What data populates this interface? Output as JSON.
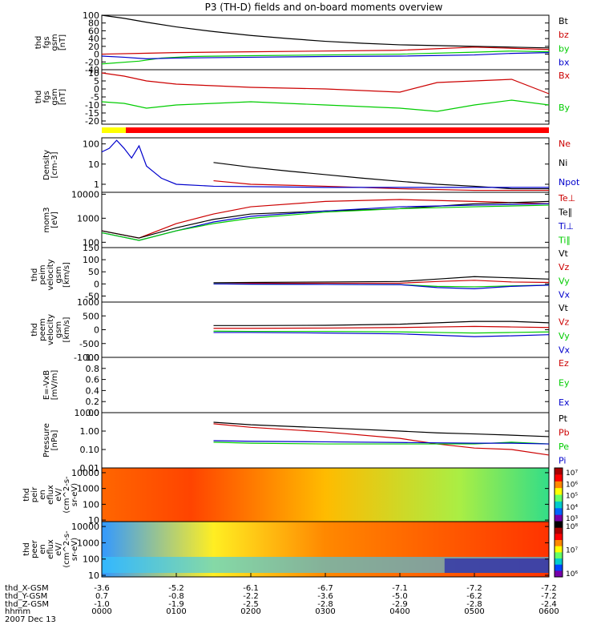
{
  "chart_data": {
    "type": "line",
    "title": "P3 (TH-D) fields and on-board moments overview",
    "date_label": "2007 Dec 13",
    "x": {
      "ticks": [
        "0000",
        "0100",
        "0200",
        "0300",
        "0400",
        "0500",
        "0600"
      ],
      "range_hours": [
        0,
        6
      ],
      "ephemeris": [
        {
          "label": "thd_X-GSM",
          "values": [
            "-3.6",
            "-5.2",
            "-6.1",
            "-6.7",
            "-7.1",
            "-7.2",
            "-7.2"
          ]
        },
        {
          "label": "thd_Y-GSM",
          "values": [
            "0.7",
            "-0.8",
            "-2.2",
            "-3.6",
            "-5.0",
            "-6.2",
            "-7.2"
          ]
        },
        {
          "label": "thd_Z-GSM",
          "values": [
            "-1.0",
            "-1.9",
            "-2.5",
            "-2.8",
            "-2.9",
            "-2.8",
            "-2.4"
          ]
        },
        {
          "label": "hhmm",
          "values": []
        }
      ]
    },
    "panels": [
      {
        "ylabel": [
          "thd",
          "fgs",
          "gsm",
          "[nT]"
        ],
        "yscale": "linear",
        "yrange": [
          -40,
          100
        ],
        "ticks": [
          "100",
          "80",
          "60",
          "40",
          "20",
          "0",
          "-20",
          "-40"
        ],
        "series": [
          {
            "name": "Bt",
            "color": "#000000",
            "x": [
              0,
              0.3,
              0.6,
              1,
              1.5,
              2,
              2.5,
              3,
              3.5,
              4,
              4.5,
              5,
              5.5,
              6
            ],
            "y": [
              100,
              92,
              82,
              70,
              58,
              48,
              40,
              33,
              28,
              24,
              22,
              20,
              18,
              16
            ]
          },
          {
            "name": "bz",
            "color": "#cc0000",
            "x": [
              0,
              0.5,
              1,
              2,
              3,
              4,
              4.5,
              5,
              5.5,
              6
            ],
            "y": [
              0,
              2,
              4,
              6,
              8,
              10,
              14,
              18,
              15,
              12
            ]
          },
          {
            "name": "by",
            "color": "#00cc00",
            "x": [
              0,
              0.5,
              0.8,
              1.2,
              2,
              3,
              4,
              5,
              5.5,
              6
            ],
            "y": [
              -25,
              -18,
              -10,
              -6,
              -4,
              -2,
              0,
              5,
              8,
              6
            ]
          },
          {
            "name": "bx",
            "color": "#0000cc",
            "x": [
              0,
              0.3,
              0.6,
              1,
              2,
              3,
              4,
              5,
              5.5,
              6
            ],
            "y": [
              -5,
              -8,
              -12,
              -10,
              -8,
              -6,
              -5,
              -2,
              2,
              4
            ]
          }
        ]
      },
      {
        "ylabel": [
          "thd",
          "fgs",
          "gsm",
          "[nT]"
        ],
        "yscale": "linear",
        "yrange": [
          -22,
          12
        ],
        "ticks": [
          "10",
          "5",
          "0",
          "-5",
          "-10",
          "-15",
          "-20"
        ],
        "series": [
          {
            "name": "Bx",
            "color": "#cc0000",
            "x": [
              0,
              0.3,
              0.6,
              1,
              1.5,
              2,
              3,
              4,
              4.5,
              5,
              5.5,
              6
            ],
            "y": [
              10,
              8,
              5,
              3,
              2,
              1,
              0,
              -2,
              4,
              5,
              6,
              -3
            ]
          },
          {
            "name": "By",
            "color": "#00cc00",
            "x": [
              0,
              0.3,
              0.6,
              1,
              1.5,
              2,
              3,
              4,
              4.5,
              5,
              5.5,
              6
            ],
            "y": [
              -8,
              -9,
              -12,
              -10,
              -9,
              -8,
              -10,
              -12,
              -14,
              -10,
              -7,
              -10
            ]
          }
        ]
      },
      {
        "ylabel": [
          "Density",
          "[cm-3]"
        ],
        "yscale": "log",
        "yrange": [
          0.4,
          200
        ],
        "ticks": [
          "100",
          "10",
          "1"
        ],
        "series": [
          {
            "name": "Ne",
            "color": "#cc0000",
            "x": [
              1.5,
              2,
              3,
              4,
              5,
              6
            ],
            "y": [
              1.5,
              1.0,
              0.8,
              0.6,
              0.5,
              0.5
            ]
          },
          {
            "name": "Ni",
            "color": "#000000",
            "x": [
              1.5,
              2,
              2.5,
              3,
              3.5,
              4,
              4.5,
              5,
              5.5,
              6
            ],
            "y": [
              12,
              7,
              4.5,
              3,
              2,
              1.4,
              1.0,
              0.8,
              0.6,
              0.6
            ]
          },
          {
            "name": "Npot",
            "color": "#0000cc",
            "x": [
              0,
              0.1,
              0.2,
              0.3,
              0.4,
              0.5,
              0.6,
              0.7,
              0.8,
              1,
              1.5,
              3,
              6
            ],
            "y": [
              40,
              60,
              150,
              60,
              20,
              80,
              8,
              4,
              2,
              1.0,
              0.8,
              0.7,
              0.7
            ]
          }
        ]
      },
      {
        "ylabel": [
          "mom3",
          "[eV]"
        ],
        "yscale": "log",
        "yrange": [
          60,
          12000
        ],
        "ticks": [
          "10000",
          "1000",
          "100"
        ],
        "series": [
          {
            "name": "Te⊥",
            "color": "#cc0000",
            "x": [
              0,
              0.5,
              1,
              1.5,
              2,
              3,
              4,
              5,
              6
            ],
            "y": [
              300,
              150,
              600,
              1500,
              3000,
              5000,
              6000,
              5000,
              4000
            ]
          },
          {
            "name": "Te∥",
            "color": "#000000",
            "x": [
              0,
              0.5,
              1,
              1.5,
              2,
              3,
              4,
              5,
              6
            ],
            "y": [
              300,
              150,
              400,
              900,
              1500,
              2000,
              2500,
              4000,
              5000
            ]
          },
          {
            "name": "Ti⊥",
            "color": "#0000cc",
            "x": [
              0,
              0.5,
              1,
              1.5,
              2,
              3,
              4,
              5,
              6
            ],
            "y": [
              250,
              120,
              300,
              700,
              1200,
              2000,
              3000,
              3500,
              4000
            ]
          },
          {
            "name": "Ti∥",
            "color": "#00cc00",
            "x": [
              0,
              0.5,
              1,
              1.5,
              2,
              3,
              4,
              5,
              6
            ],
            "y": [
              250,
              120,
              300,
              600,
              1000,
              1800,
              2500,
              3000,
              3500
            ]
          }
        ]
      },
      {
        "ylabel": [
          "thd",
          "peim",
          "velocity",
          "gsm",
          "[km/s]"
        ],
        "yscale": "linear",
        "yrange": [
          -75,
          150
        ],
        "ticks": [
          "150",
          "100",
          "50",
          "0",
          "-50"
        ],
        "series": [
          {
            "name": "Vt",
            "color": "#000000",
            "x": [
              1.5,
              2,
              3,
              4,
              4.5,
              5,
              5.5,
              6
            ],
            "y": [
              5,
              6,
              8,
              10,
              20,
              30,
              25,
              20
            ]
          },
          {
            "name": "Vz",
            "color": "#cc0000",
            "x": [
              1.5,
              2,
              3,
              4,
              4.5,
              5,
              5.5,
              6
            ],
            "y": [
              0,
              2,
              3,
              3,
              10,
              15,
              8,
              6
            ]
          },
          {
            "name": "Vy",
            "color": "#00cc00",
            "x": [
              1.5,
              2,
              3,
              4,
              4.5,
              5,
              5.5,
              6
            ],
            "y": [
              0,
              -1,
              -2,
              -3,
              -10,
              -12,
              -8,
              -5
            ]
          },
          {
            "name": "Vx",
            "color": "#0000cc",
            "x": [
              1.5,
              2,
              3,
              4,
              4.5,
              5,
              5.5,
              6
            ],
            "y": [
              0,
              -1,
              -2,
              -3,
              -15,
              -20,
              -10,
              -5
            ]
          }
        ]
      },
      {
        "ylabel": [
          "thd",
          "peem",
          "velocity",
          "gsm",
          "[km/s]"
        ],
        "yscale": "linear",
        "yrange": [
          -1000,
          1000
        ],
        "ticks": [
          "1000",
          "500",
          "0",
          "-500",
          "-1000"
        ],
        "series": [
          {
            "name": "Vt",
            "color": "#000000",
            "x": [
              1.5,
              2,
              3,
              4,
              4.5,
              5,
              5.5,
              6
            ],
            "y": [
              150,
              150,
              160,
              200,
              250,
              300,
              300,
              250
            ]
          },
          {
            "name": "Vz",
            "color": "#cc0000",
            "x": [
              1.5,
              2,
              3,
              4,
              4.5,
              5,
              5.5,
              6
            ],
            "y": [
              50,
              50,
              60,
              80,
              100,
              120,
              100,
              80
            ]
          },
          {
            "name": "Vy",
            "color": "#00cc00",
            "x": [
              1.5,
              2,
              3,
              4,
              4.5,
              5,
              5.5,
              6
            ],
            "y": [
              -50,
              -60,
              -60,
              -80,
              -100,
              -120,
              -100,
              -80
            ]
          },
          {
            "name": "Vx",
            "color": "#0000cc",
            "x": [
              1.5,
              2,
              3,
              4,
              4.5,
              5,
              5.5,
              6
            ],
            "y": [
              -100,
              -100,
              -120,
              -150,
              -200,
              -250,
              -220,
              -180
            ]
          }
        ]
      },
      {
        "ylabel": [
          "E=-VxB",
          "[mV/m]"
        ],
        "yscale": "linear",
        "yrange": [
          0,
          1
        ],
        "ticks": [
          "1.0",
          "0.8",
          "0.6",
          "0.4",
          "0.2",
          "0.0"
        ],
        "series": [
          {
            "name": "Ez",
            "color": "#cc0000",
            "x": [],
            "y": []
          },
          {
            "name": "Ey",
            "color": "#00cc00",
            "x": [],
            "y": []
          },
          {
            "name": "Ex",
            "color": "#0000cc",
            "x": [],
            "y": []
          }
        ]
      },
      {
        "ylabel": [
          "Pressure",
          "[nPa]"
        ],
        "yscale": "log",
        "yrange": [
          0.01,
          10
        ],
        "ticks": [
          "10.00",
          "1.00",
          "0.10",
          "0.01"
        ],
        "series": [
          {
            "name": "Pt",
            "color": "#000000",
            "x": [
              1.5,
              2,
              3,
              4,
              4.5,
              5,
              5.5,
              6
            ],
            "y": [
              3,
              2.2,
              1.5,
              1.0,
              0.8,
              0.7,
              0.6,
              0.5
            ]
          },
          {
            "name": "Pb",
            "color": "#cc0000",
            "x": [
              1.5,
              2,
              3,
              4,
              4.5,
              5,
              5.5,
              6
            ],
            "y": [
              2.5,
              1.6,
              0.9,
              0.4,
              0.2,
              0.12,
              0.1,
              0.05
            ]
          },
          {
            "name": "Pe",
            "color": "#00cc00",
            "x": [
              1.5,
              2,
              3,
              4,
              4.5,
              5,
              5.5,
              6
            ],
            "y": [
              0.25,
              0.22,
              0.2,
              0.2,
              0.2,
              0.2,
              0.25,
              0.2
            ]
          },
          {
            "name": "Pi",
            "color": "#0000cc",
            "x": [
              1.5,
              2,
              3,
              4,
              4.5,
              5,
              5.5,
              6
            ],
            "y": [
              0.3,
              0.28,
              0.26,
              0.24,
              0.23,
              0.22,
              0.22,
              0.2
            ]
          }
        ]
      },
      {
        "type": "heatmap",
        "ylabel": [
          "thd",
          "peir",
          "en",
          "eflux",
          "eV/",
          "(cm^2-s-",
          "sr-eV)"
        ],
        "yscale": "log",
        "yrange": [
          8,
          20000
        ],
        "ticks": [
          "10000",
          "1000",
          "100",
          "10"
        ],
        "colorbar_ticks": [
          "10⁷",
          "10⁶",
          "10⁵",
          "10⁴",
          "10³"
        ]
      },
      {
        "type": "heatmap",
        "ylabel": [
          "thd",
          "peer",
          "en",
          "eflux",
          "eV/",
          "(cm^2-s-",
          "sr-eV)"
        ],
        "yscale": "log",
        "yrange": [
          8,
          20000
        ],
        "ticks": [
          "10000",
          "1000",
          "100",
          "10"
        ],
        "colorbar_ticks": [
          "10⁸",
          "10⁷",
          "10⁶"
        ]
      }
    ]
  }
}
